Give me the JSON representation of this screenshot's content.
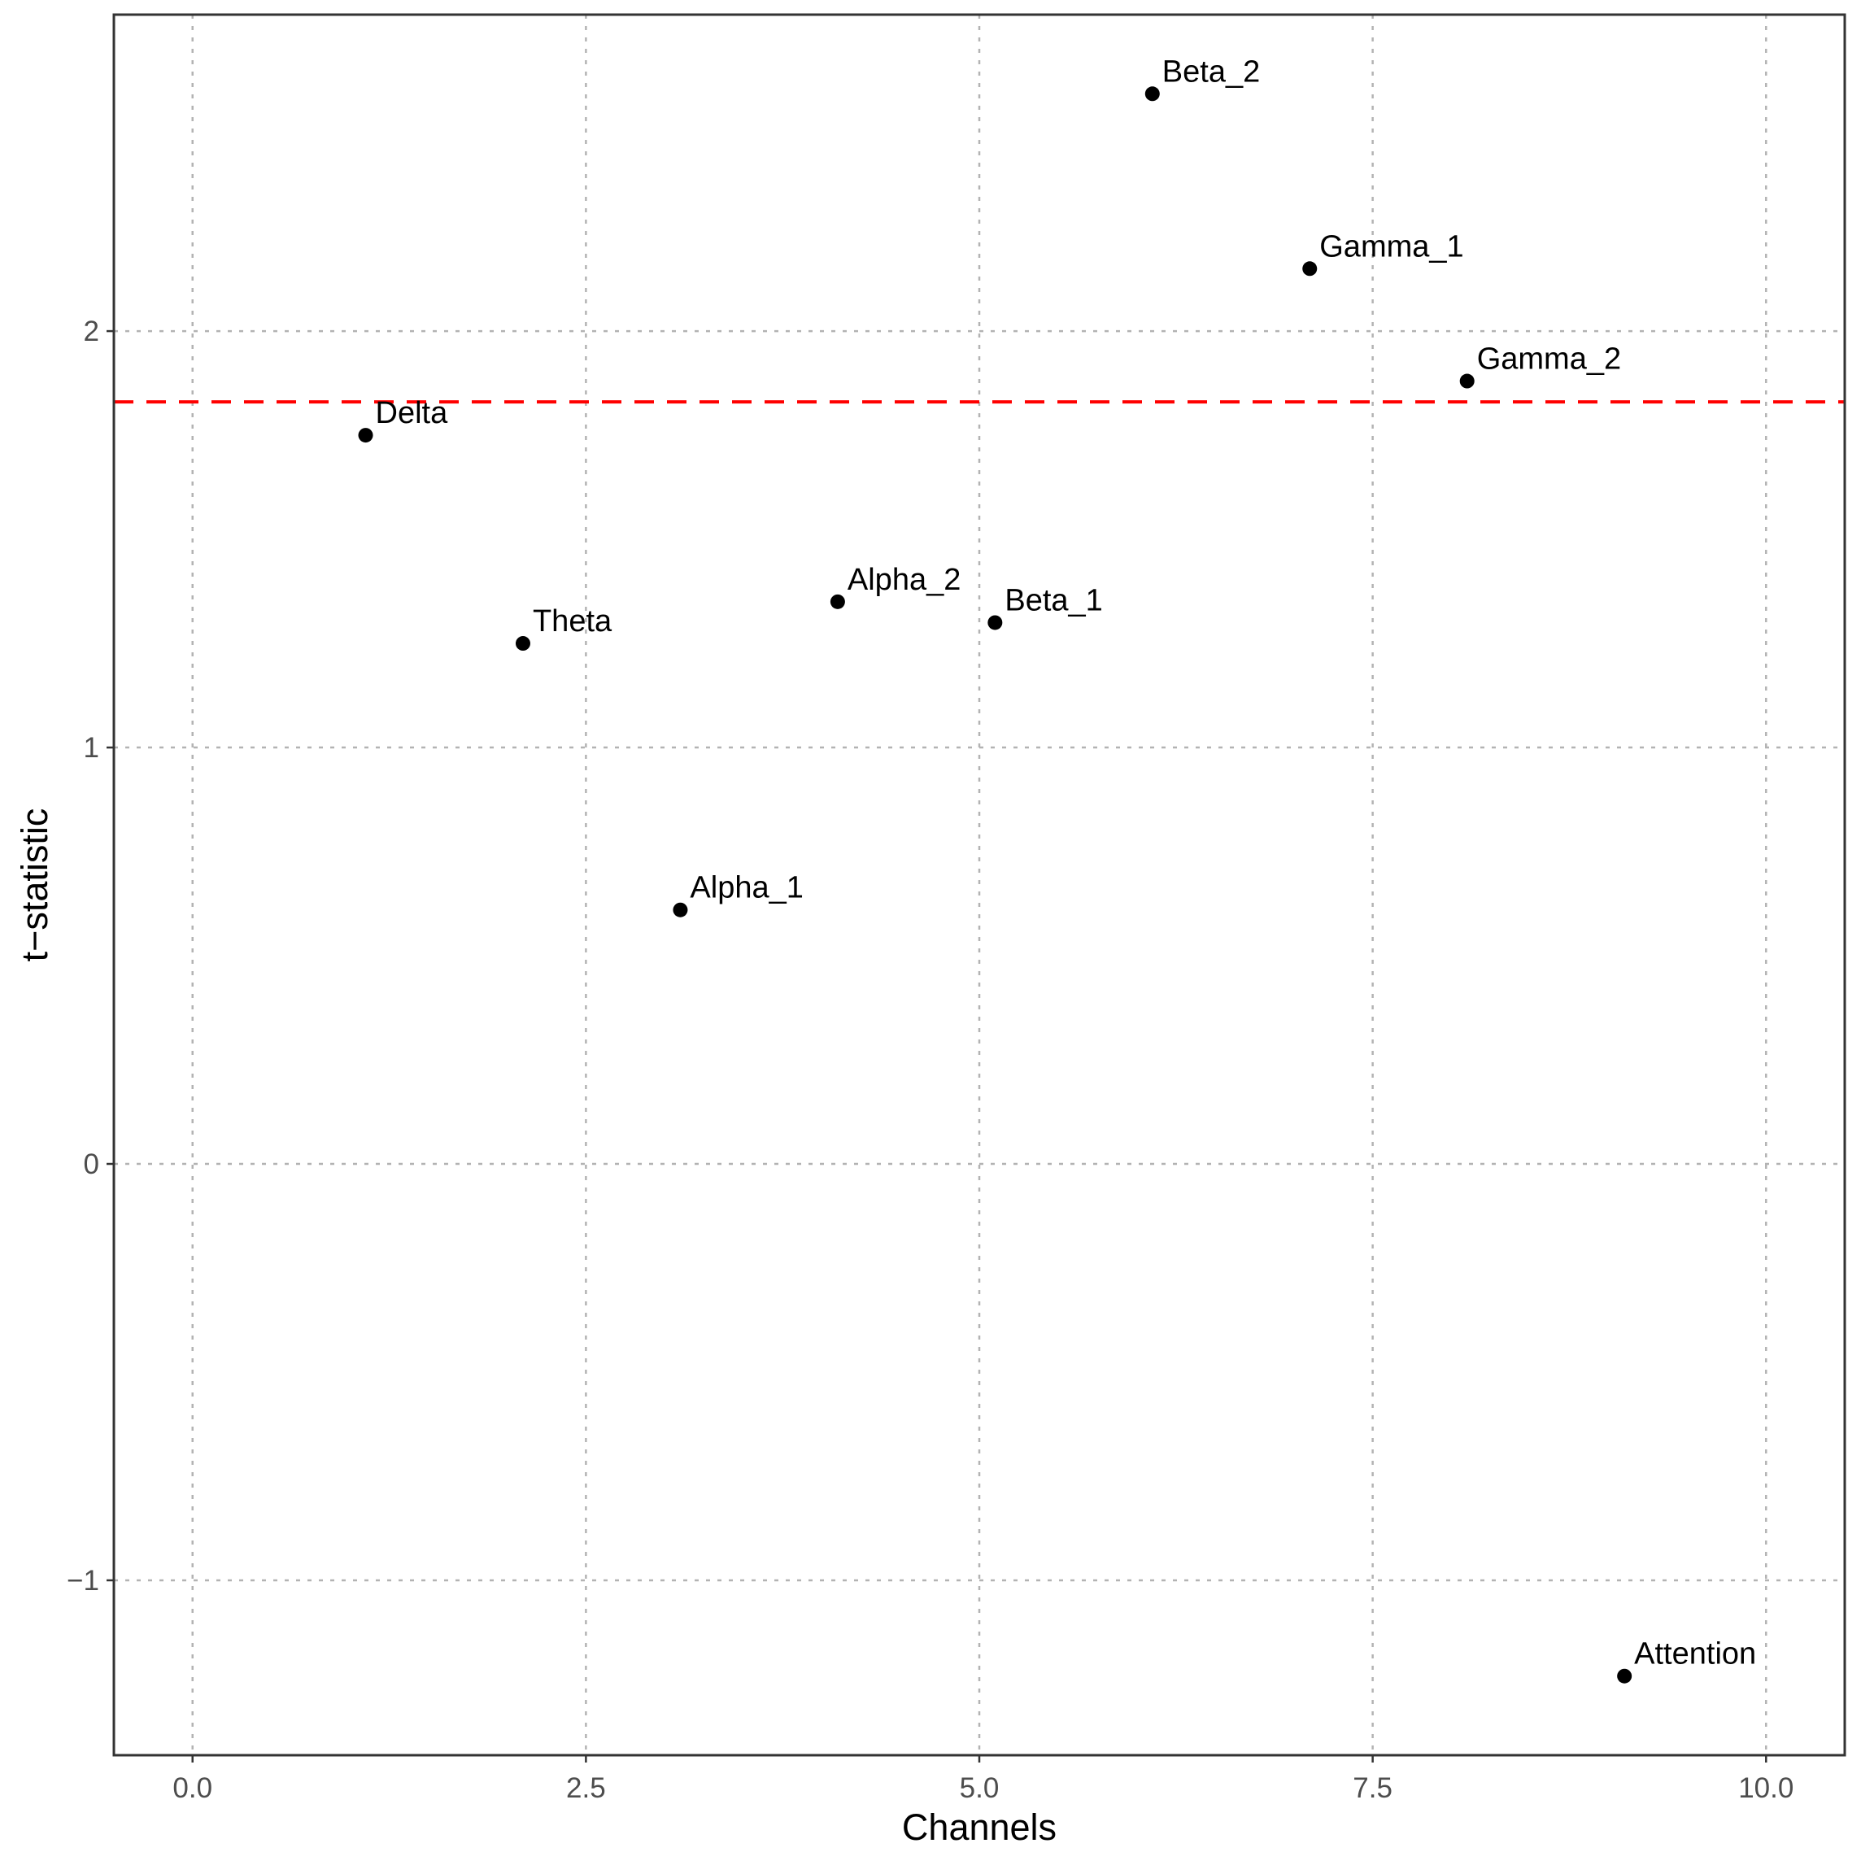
{
  "chart_data": {
    "type": "scatter",
    "title": "",
    "xlabel": "Channels",
    "ylabel": "t−statistic",
    "xlim": [
      -0.5,
      10.5
    ],
    "ylim": [
      -1.42,
      2.76
    ],
    "grid": true,
    "grid_style": "dotted",
    "x_ticks": [
      {
        "value": 0,
        "label": "0.0"
      },
      {
        "value": 2.5,
        "label": "2.5"
      },
      {
        "value": 5,
        "label": "5.0"
      },
      {
        "value": 7.5,
        "label": "7.5"
      },
      {
        "value": 10,
        "label": "10.0"
      }
    ],
    "y_ticks": [
      {
        "value": -1,
        "label": "−1"
      },
      {
        "value": 0,
        "label": "0"
      },
      {
        "value": 1,
        "label": "1"
      },
      {
        "value": 2,
        "label": "2"
      }
    ],
    "points": [
      {
        "label": "Delta",
        "x": 1.1,
        "y": 1.75
      },
      {
        "label": "Theta",
        "x": 2.1,
        "y": 1.25
      },
      {
        "label": "Alpha_1",
        "x": 3.1,
        "y": 0.61
      },
      {
        "label": "Alpha_2",
        "x": 4.1,
        "y": 1.35
      },
      {
        "label": "Beta_1",
        "x": 5.1,
        "y": 1.3
      },
      {
        "label": "Beta_2",
        "x": 6.1,
        "y": 2.57
      },
      {
        "label": "Gamma_1",
        "x": 7.1,
        "y": 2.15
      },
      {
        "label": "Gamma_2",
        "x": 8.1,
        "y": 1.88
      },
      {
        "label": "Attention",
        "x": 9.1,
        "y": -1.23
      }
    ],
    "reference_line": {
      "orientation": "horizontal",
      "y": 1.83,
      "color": "#ff0000",
      "style": "dashed"
    },
    "point_color": "#000000"
  }
}
